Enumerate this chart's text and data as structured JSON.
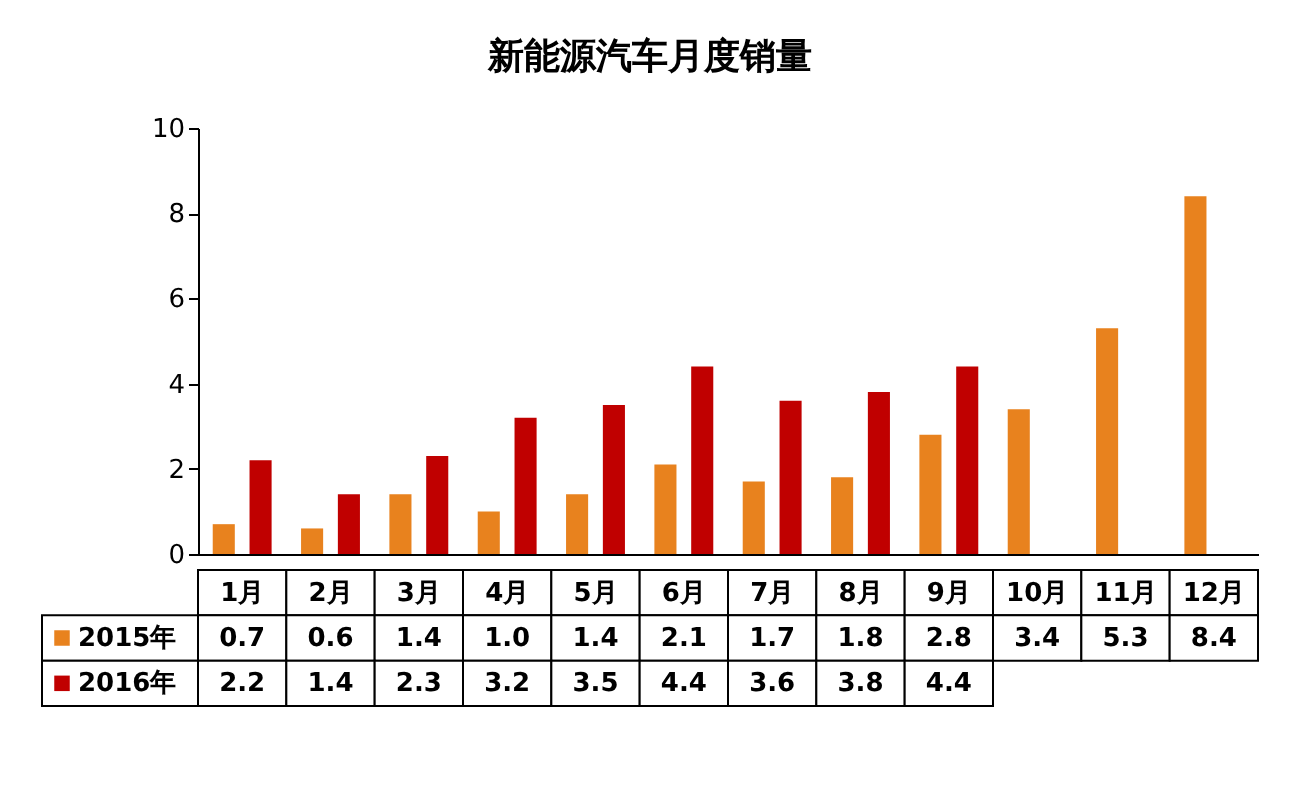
{
  "chart_data": {
    "type": "bar",
    "title": "新能源汽车月度销量",
    "categories": [
      "1月",
      "2月",
      "3月",
      "4月",
      "5月",
      "6月",
      "7月",
      "8月",
      "9月",
      "10月",
      "11月",
      "12月"
    ],
    "series": [
      {
        "name": "2015年",
        "color": "#e8821e",
        "values": [
          0.7,
          0.6,
          1.4,
          1.0,
          1.4,
          2.1,
          1.7,
          1.8,
          2.8,
          3.4,
          5.3,
          8.4
        ],
        "value_labels": [
          "0.7",
          "0.6",
          "1.4",
          "1.0",
          "1.4",
          "2.1",
          "1.7",
          "1.8",
          "2.8",
          "3.4",
          "5.3",
          "8.4"
        ]
      },
      {
        "name": "2016年",
        "color": "#c00000",
        "values": [
          2.2,
          1.4,
          2.3,
          3.2,
          3.5,
          4.4,
          3.6,
          3.8,
          4.4,
          null,
          null,
          null
        ],
        "value_labels": [
          "2.2",
          "1.4",
          "2.3",
          "3.2",
          "3.5",
          "4.4",
          "3.6",
          "3.8",
          "4.4",
          null,
          null,
          null
        ]
      }
    ],
    "ylim": [
      0,
      10
    ],
    "yticks": [
      0,
      2,
      4,
      6,
      8,
      10
    ],
    "grid": false,
    "legend": "bottom"
  }
}
